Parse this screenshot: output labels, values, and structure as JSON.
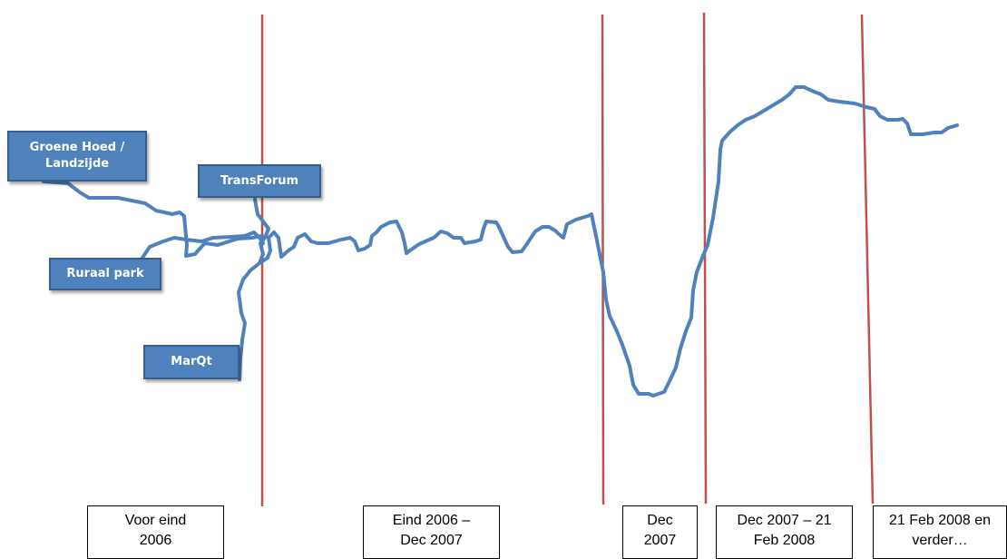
{
  "colors": {
    "line": "#4f81bd",
    "divider": "#c0504d",
    "box_fill": "#4f81bd",
    "box_border": "#385d8a"
  },
  "actors": [
    {
      "id": "groene-hoed",
      "label": "Groene Hoed /\nLandzijde"
    },
    {
      "id": "transforum",
      "label": "TransForum"
    },
    {
      "id": "ruraal-park",
      "label": "Ruraal park"
    },
    {
      "id": "marqt",
      "label": "MarQt"
    }
  ],
  "phases": [
    {
      "label": "Voor eind\n2006"
    },
    {
      "label": "Eind 2006 –\nDec 2007"
    },
    {
      "label": "Dec\n2007"
    },
    {
      "label": "Dec 2007 – 21\nFeb 2008"
    },
    {
      "label": "21 Feb 2008 en\nverder…"
    }
  ]
}
